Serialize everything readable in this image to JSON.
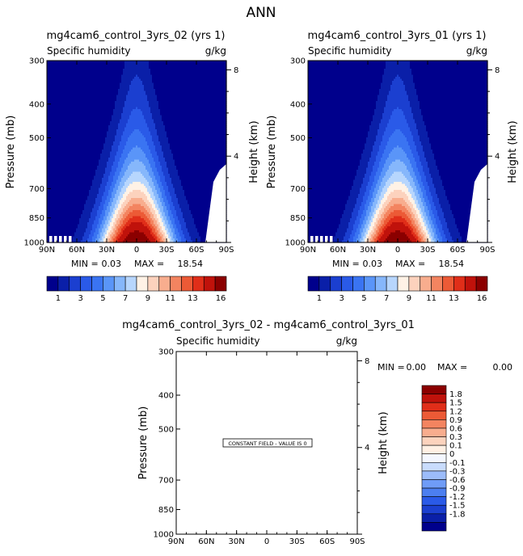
{
  "page": {
    "title": "ANN"
  },
  "colors": {
    "scale": [
      "#00008c",
      "#0a1fa8",
      "#1b3fd0",
      "#2a5ae8",
      "#3a74f2",
      "#5a95f8",
      "#86b7fb",
      "#b7d6fd",
      "#fff2e6",
      "#fcd2bd",
      "#f8ad8e",
      "#f38460",
      "#ec5a36",
      "#e02e19",
      "#c0120b",
      "#8b0000"
    ],
    "diff_scale": [
      "#00008c",
      "#0a1fa8",
      "#1b3fd0",
      "#2a5ae8",
      "#4c7ff0",
      "#6f9cf7",
      "#9cbcfa",
      "#c9dcfd",
      "#f4f7ff",
      "#fff0e4",
      "#fcd3bd",
      "#f8ad8e",
      "#f38460",
      "#ec5a36",
      "#e02e19",
      "#c0120b",
      "#8b0000"
    ]
  },
  "panels": {
    "left": {
      "title": "mg4cam6_control_3yrs_02 (yrs 1)",
      "subtitle": "Specific humidity",
      "units": "g/kg",
      "min_label": "MIN =",
      "min_value": "0.03",
      "max_label": "MAX =",
      "max_value": "18.54"
    },
    "right": {
      "title": "mg4cam6_control_3yrs_01 (yrs 1)",
      "subtitle": "Specific humidity",
      "units": "g/kg",
      "min_label": "MIN =",
      "min_value": "0.03",
      "max_label": "MAX =",
      "max_value": "18.54"
    },
    "diff": {
      "title": "mg4cam6_control_3yrs_02 - mg4cam6_control_3yrs_01",
      "subtitle": "Specific humidity",
      "units": "g/kg",
      "min_label": "MIN =",
      "min_value": "0.00",
      "max_label": "MAX =",
      "max_value": "0.00",
      "constant_text": "CONSTANT FIELD - VALUE IS 0"
    }
  },
  "chart_data": [
    {
      "type": "heatmap",
      "title": "mg4cam6_control_3yrs_02 (yrs 1)",
      "subtitle": "Specific humidity",
      "units": "g/kg",
      "ylabel": "Pressure (mb)",
      "ylabel_right": "Height (km)",
      "x_ticks": [
        "90N",
        "60N",
        "30N",
        "0",
        "30S",
        "60S",
        "90S"
      ],
      "x_values": [
        90,
        60,
        30,
        0,
        -30,
        -60,
        -90
      ],
      "y_ticks": [
        "300",
        "400",
        "500",
        "700",
        "850",
        "1000"
      ],
      "y_values": [
        300,
        400,
        500,
        700,
        850,
        1000
      ],
      "y_scale": "log",
      "ylim": [
        300,
        1000
      ],
      "height_ticks": [
        "8",
        "4"
      ],
      "height_values": [
        8,
        4
      ],
      "min": 0.03,
      "max": 18.54,
      "colorbar_labels": [
        "1",
        "3",
        "5",
        "7",
        "9",
        "11",
        "13",
        "16"
      ],
      "levels": [
        0.5,
        1,
        2,
        3,
        4,
        5,
        6,
        7,
        8,
        9,
        10,
        11,
        12,
        13,
        14,
        16
      ]
    },
    {
      "type": "heatmap",
      "title": "mg4cam6_control_3yrs_01 (yrs 1)",
      "subtitle": "Specific humidity",
      "units": "g/kg",
      "ylabel": "Pressure (mb)",
      "ylabel_right": "Height (km)",
      "x_ticks": [
        "90N",
        "60N",
        "30N",
        "0",
        "30S",
        "60S",
        "90S"
      ],
      "x_values": [
        90,
        60,
        30,
        0,
        -30,
        -60,
        -90
      ],
      "y_ticks": [
        "300",
        "400",
        "500",
        "700",
        "850",
        "1000"
      ],
      "y_values": [
        300,
        400,
        500,
        700,
        850,
        1000
      ],
      "y_scale": "log",
      "ylim": [
        300,
        1000
      ],
      "height_ticks": [
        "8",
        "4"
      ],
      "height_values": [
        8,
        4
      ],
      "min": 0.03,
      "max": 18.54,
      "colorbar_labels": [
        "1",
        "3",
        "5",
        "7",
        "9",
        "11",
        "13",
        "16"
      ],
      "levels": [
        0.5,
        1,
        2,
        3,
        4,
        5,
        6,
        7,
        8,
        9,
        10,
        11,
        12,
        13,
        14,
        16
      ]
    },
    {
      "type": "heatmap",
      "title": "mg4cam6_control_3yrs_02 - mg4cam6_control_3yrs_01",
      "subtitle": "Specific humidity",
      "units": "g/kg",
      "ylabel": "Pressure (mb)",
      "ylabel_right": "Height (km)",
      "x_ticks": [
        "90N",
        "60N",
        "30N",
        "0",
        "30S",
        "60S",
        "90S"
      ],
      "x_values": [
        90,
        60,
        30,
        0,
        -30,
        -60,
        -90
      ],
      "y_ticks": [
        "300",
        "400",
        "500",
        "700",
        "850",
        "1000"
      ],
      "y_values": [
        300,
        400,
        500,
        700,
        850,
        1000
      ],
      "y_scale": "log",
      "ylim": [
        300,
        1000
      ],
      "height_ticks": [
        "8",
        "4"
      ],
      "height_values": [
        8,
        4
      ],
      "min": 0.0,
      "max": 0.0,
      "constant_value": 0,
      "colorbar_labels": [
        "1.8",
        "1.5",
        "1.2",
        "0.9",
        "0.6",
        "0.3",
        "0.1",
        "0",
        "-0.1",
        "-0.3",
        "-0.6",
        "-0.9",
        "-1.2",
        "-1.5",
        "-1.8"
      ],
      "levels": [
        -1.8,
        -1.5,
        -1.2,
        -0.9,
        -0.6,
        -0.3,
        -0.1,
        0,
        0.1,
        0.3,
        0.6,
        0.9,
        1.2,
        1.5,
        1.8
      ]
    }
  ]
}
